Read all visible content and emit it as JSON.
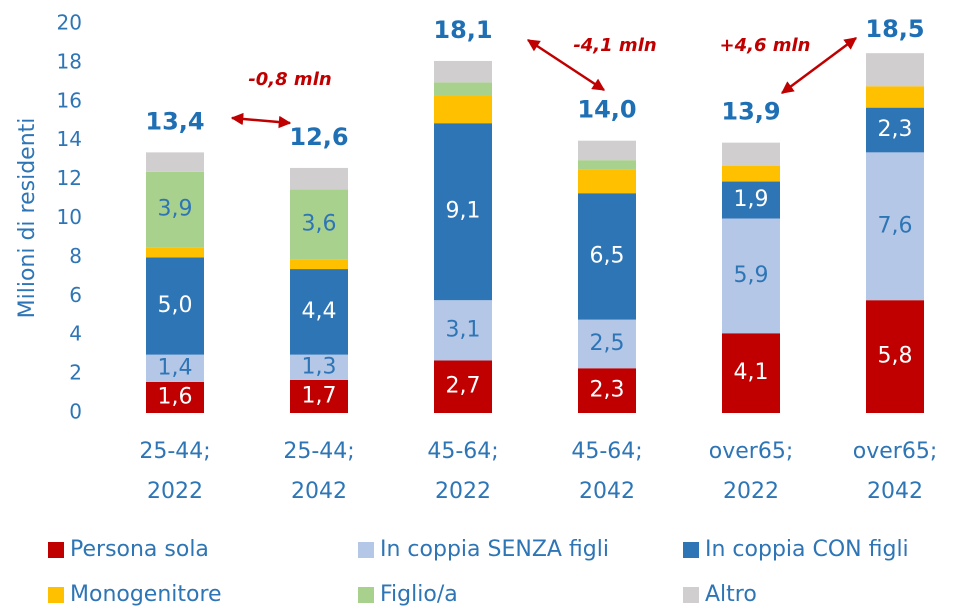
{
  "chart_data": {
    "type": "stacked_bar",
    "y_label": "Milioni di residenti",
    "categories": [
      [
        "25-44;",
        "2022"
      ],
      [
        "25-44;",
        "2042"
      ],
      [
        "45-64;",
        "2022"
      ],
      [
        "45-64;",
        "2042"
      ],
      [
        "over65;",
        "2022"
      ],
      [
        "over65;",
        "2042"
      ]
    ],
    "series": [
      {
        "name": "Persona sola",
        "color": "#c00000",
        "label_color": "#ffffff",
        "values": [
          1.6,
          1.7,
          2.7,
          2.3,
          4.1,
          5.8
        ],
        "value_labels": [
          "1,6",
          "1,7",
          "2,7",
          "2,3",
          "4,1",
          "5,8"
        ]
      },
      {
        "name": "In coppia SENZA figli",
        "color": "#b4c7e7",
        "label_color": "#2e75b6",
        "values": [
          1.4,
          1.3,
          3.1,
          2.5,
          5.9,
          7.6
        ],
        "value_labels": [
          "1,4",
          "1,3",
          "3,1",
          "2,5",
          "5,9",
          "7,6"
        ]
      },
      {
        "name": "In coppia CON figli",
        "color": "#2e75b6",
        "label_color": "#ffffff",
        "values": [
          5.0,
          4.4,
          9.1,
          6.5,
          1.9,
          2.3
        ],
        "value_labels": [
          "5,0",
          "4,4",
          "9,1",
          "6,5",
          "1,9",
          "2,3"
        ]
      },
      {
        "name": "Monogenitore",
        "color": "#ffc000",
        "values": [
          0.5,
          0.5,
          1.4,
          1.2,
          0.8,
          1.1
        ]
      },
      {
        "name": "Figlio/a",
        "color": "#a9d18e",
        "label_color": "#2e75b6",
        "values": [
          3.9,
          3.6,
          0.7,
          0.5,
          0,
          0
        ],
        "value_labels": [
          "3,9",
          "3,6",
          null,
          null,
          null,
          null
        ]
      },
      {
        "name": "Altro",
        "color": "#d0cece",
        "values": [
          1.0,
          1.1,
          1.1,
          1.0,
          1.2,
          1.7
        ]
      }
    ],
    "totals": {
      "values": [
        13.4,
        12.6,
        18.1,
        14.0,
        13.9,
        18.5
      ],
      "value_labels": [
        "13,4",
        "12,6",
        "18,1",
        "14,0",
        "13,9",
        "18,5"
      ]
    },
    "annotations": [
      "-0,8 mln",
      "-4,1 mln",
      "+4,6 mln"
    ],
    "ylim": [
      0,
      20
    ],
    "yticks": [
      0,
      2,
      4,
      6,
      8,
      10,
      12,
      14,
      16,
      18,
      20
    ],
    "grid": false
  }
}
